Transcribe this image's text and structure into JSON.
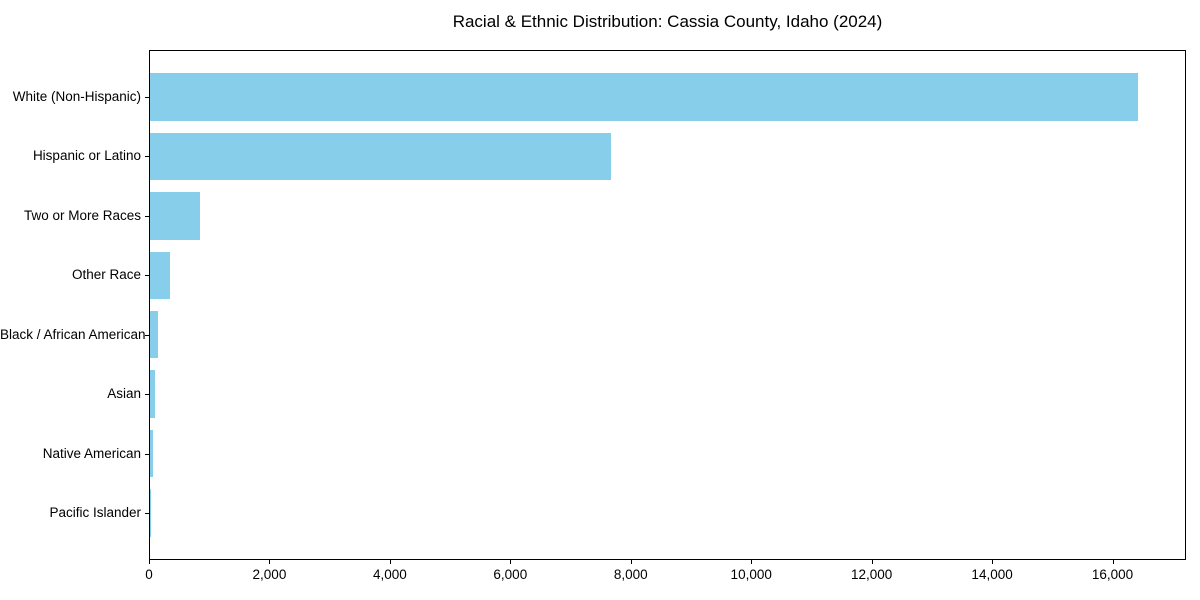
{
  "chart_data": {
    "type": "bar",
    "orientation": "horizontal",
    "title": "Racial & Ethnic Distribution: Cassia County, Idaho (2024)",
    "categories": [
      "White (Non-Hispanic)",
      "Hispanic or Latino",
      "Two or More Races",
      "Other Race",
      "Black / African American",
      "Asian",
      "Native American",
      "Pacific Islander"
    ],
    "values": [
      16400,
      7650,
      830,
      330,
      125,
      80,
      50,
      10
    ],
    "xlabel": "",
    "ylabel": "",
    "xlim": [
      0,
      17220
    ],
    "xticks": [
      0,
      2000,
      4000,
      6000,
      8000,
      10000,
      12000,
      14000,
      16000
    ],
    "xtick_labels": [
      "0",
      "2,000",
      "4,000",
      "6,000",
      "8,000",
      "10,000",
      "12,000",
      "14,000",
      "16,000"
    ],
    "bar_color": "#87CEEB",
    "axis_color": "#000000",
    "background_color": "#FFFFFF",
    "grid": false,
    "legend": false,
    "bar_height_fraction": 0.8
  }
}
